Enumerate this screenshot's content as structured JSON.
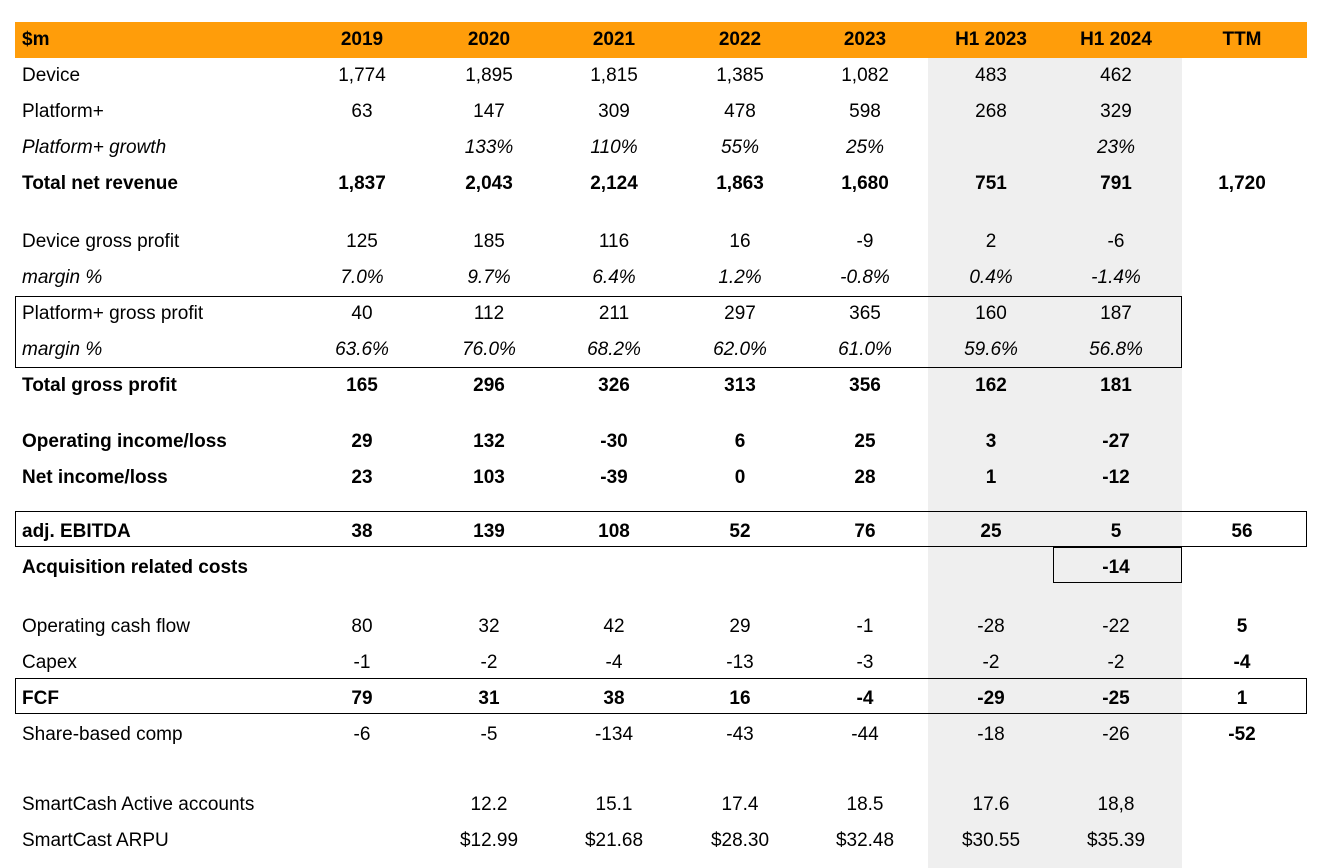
{
  "header": {
    "label": "$m",
    "columns": [
      "2019",
      "2020",
      "2021",
      "2022",
      "2023",
      "H1 2023",
      "H1 2024",
      "TTM"
    ]
  },
  "rows": [
    {
      "label": "Device",
      "values": [
        "1,774",
        "1,895",
        "1,815",
        "1,385",
        "1,082",
        "483",
        "462",
        ""
      ]
    },
    {
      "label": "Platform+",
      "values": [
        "63",
        "147",
        "309",
        "478",
        "598",
        "268",
        "329",
        ""
      ]
    },
    {
      "label": "Platform+ growth",
      "values": [
        "",
        "133%",
        "110%",
        "55%",
        "25%",
        "",
        "23%",
        ""
      ]
    },
    {
      "label": "Total net revenue",
      "values": [
        "1,837",
        "2,043",
        "2,124",
        "1,863",
        "1,680",
        "751",
        "791",
        "1,720"
      ]
    },
    {
      "label": "Device gross profit",
      "values": [
        "125",
        "185",
        "116",
        "16",
        "-9",
        "2",
        "-6",
        ""
      ]
    },
    {
      "label": "margin %",
      "values": [
        "7.0%",
        "9.7%",
        "6.4%",
        "1.2%",
        "-0.8%",
        "0.4%",
        "-1.4%",
        ""
      ]
    },
    {
      "label": "Platform+ gross profit",
      "values": [
        "40",
        "112",
        "211",
        "297",
        "365",
        "160",
        "187",
        ""
      ]
    },
    {
      "label": "margin %",
      "values": [
        "63.6%",
        "76.0%",
        "68.2%",
        "62.0%",
        "61.0%",
        "59.6%",
        "56.8%",
        ""
      ]
    },
    {
      "label": "Total gross profit",
      "values": [
        "165",
        "296",
        "326",
        "313",
        "356",
        "162",
        "181",
        ""
      ]
    },
    {
      "label": "Operating income/loss",
      "values": [
        "29",
        "132",
        "-30",
        "6",
        "25",
        "3",
        "-27",
        ""
      ]
    },
    {
      "label": "Net income/loss",
      "values": [
        "23",
        "103",
        "-39",
        "0",
        "28",
        "1",
        "-12",
        ""
      ]
    },
    {
      "label": "adj. EBITDA",
      "values": [
        "38",
        "139",
        "108",
        "52",
        "76",
        "25",
        "5",
        "56"
      ]
    },
    {
      "label": "Acquisition related costs",
      "values": [
        "",
        "",
        "",
        "",
        "",
        "",
        "-14",
        ""
      ]
    },
    {
      "label": "Operating cash flow",
      "values": [
        "80",
        "32",
        "42",
        "29",
        "-1",
        "-28",
        "-22",
        "5"
      ]
    },
    {
      "label": "Capex",
      "values": [
        "-1",
        "-2",
        "-4",
        "-13",
        "-3",
        "-2",
        "-2",
        "-4"
      ]
    },
    {
      "label": "FCF",
      "values": [
        "79",
        "31",
        "38",
        "16",
        "-4",
        "-29",
        "-25",
        "1"
      ]
    },
    {
      "label": "Share-based comp",
      "values": [
        "-6",
        "-5",
        "-134",
        "-43",
        "-44",
        "-18",
        "-26",
        "-52"
      ]
    },
    {
      "label": "SmartCash Active accounts",
      "values": [
        "",
        "12.2",
        "15.1",
        "17.4",
        "18.5",
        "17.6",
        "18,8",
        ""
      ]
    },
    {
      "label": "SmartCast ARPU",
      "values": [
        "",
        "$12.99",
        "$21.68",
        "$28.30",
        "$32.48",
        "$30.55",
        "$35.39",
        ""
      ]
    }
  ]
}
